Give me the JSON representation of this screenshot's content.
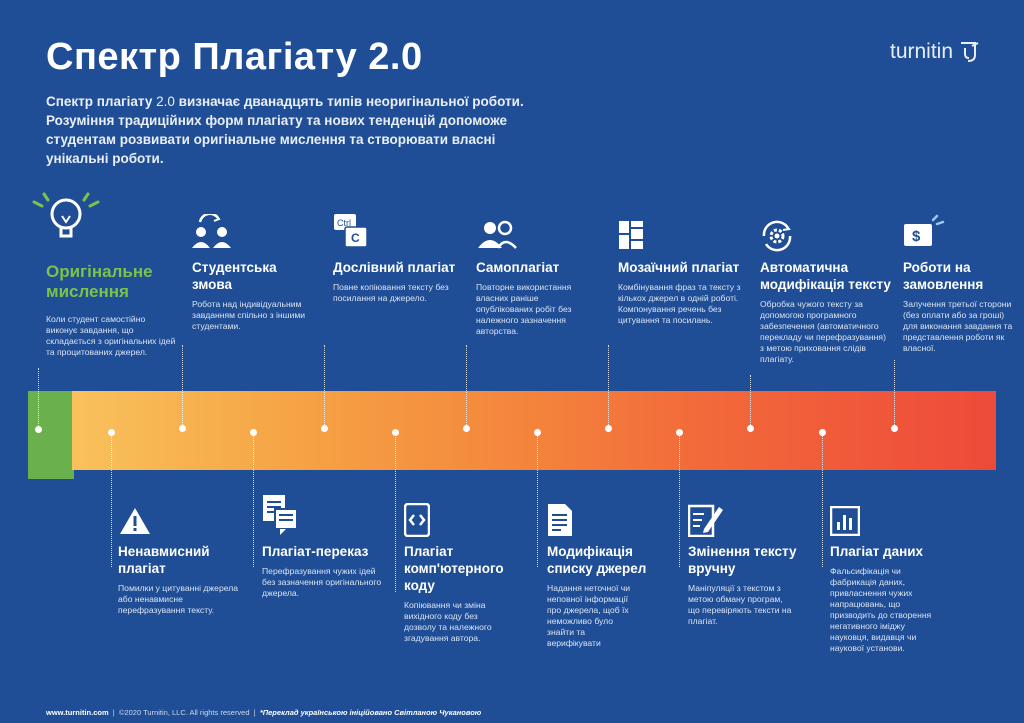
{
  "title": "Спектр Плагіату 2.0",
  "logo_text": "turnitin",
  "intro": {
    "lead": "Спектр плагіату",
    "version": "2.0",
    "rest": " визначає дванадцять типів неоригінальної роботи. Розуміння традиційних форм плагіату та нових тенденцій допоможе студентам розвивати оригінальне мислення та створювати власні унікальні роботи."
  },
  "top_items": [
    {
      "icon": "lightbulb-icon",
      "title": "Оригінальне мислення",
      "desc": "Коли студент самостійно виконує завдання, що складається з оригінальних ідей та процитованих джерел."
    },
    {
      "icon": "collusion-people-icon",
      "title": "Студентська змова",
      "desc": "Робота над індивідуальним завданням спільно з іншими студентами."
    },
    {
      "icon": "ctrl-c-icon",
      "title": "Дослівний плагіат",
      "desc": "Повне копіювання тексту без посилання на джерело."
    },
    {
      "icon": "self-people-icon",
      "title": "Самоплагіат",
      "desc": "Повторне використання власних раніше опублікованих робіт без належного зазначення авторства."
    },
    {
      "icon": "mosaic-icon",
      "title": "Мозаїчний плагіат",
      "desc": "Комбінування фраз та тексту з кількох джерел в одній роботі. Компонування речень без цитування та посилань."
    },
    {
      "icon": "gear-refresh-icon",
      "title": "Автоматична модифікація тексту",
      "desc": "Обробка чужого тексту за допомогою програмного забезпечення (автоматичного перекладу чи перефразування) з метою приховання слідів плагіату."
    },
    {
      "icon": "money-icon",
      "title": "Роботи на замовлення",
      "desc": "Залучення третьої сторони (без оплати або за гроші) для виконання завдання та представлення роботи як власної."
    }
  ],
  "bottom_items": [
    {
      "icon": "warning-icon",
      "title": "Ненавмисний плагіат",
      "desc": "Помилки у цитуванні джерела або ненавмисне перефразування тексту."
    },
    {
      "icon": "documents-icon",
      "title": "Плагіат-переказ",
      "desc": "Перефразування чужих ідей без зазначення оригінального джерела."
    },
    {
      "icon": "code-icon",
      "title": "Плагіат комп'ютерного коду",
      "desc": "Копіювання чи зміна вихідного коду без дозволу та належного згадування автора."
    },
    {
      "icon": "source-list-icon",
      "title": "Модифікація списку джерел",
      "desc": "Надання неточної чи неповної інформації про джерела, щоб їх неможливо було знайти та верифікувати"
    },
    {
      "icon": "edit-text-icon",
      "title": "Змінення тексту вручну",
      "desc": "Маніпуляції з текстом з метою обману програм, що перевіряють тексти на плагіат."
    },
    {
      "icon": "data-chart-icon",
      "title": "Плагіат даних",
      "desc": "Фальсифікація чи фабрикація даних, привласнення чужих напрацювань, що призводить до створення негативного іміджу науковця, видавця чи наукової установи."
    }
  ],
  "footer": {
    "site": "www.turnitin.com",
    "copyright": "©2020 Turnitin, LLC. All rights reserved",
    "credit": "*Переклад українською ініційовано Світланою Чукановою"
  }
}
